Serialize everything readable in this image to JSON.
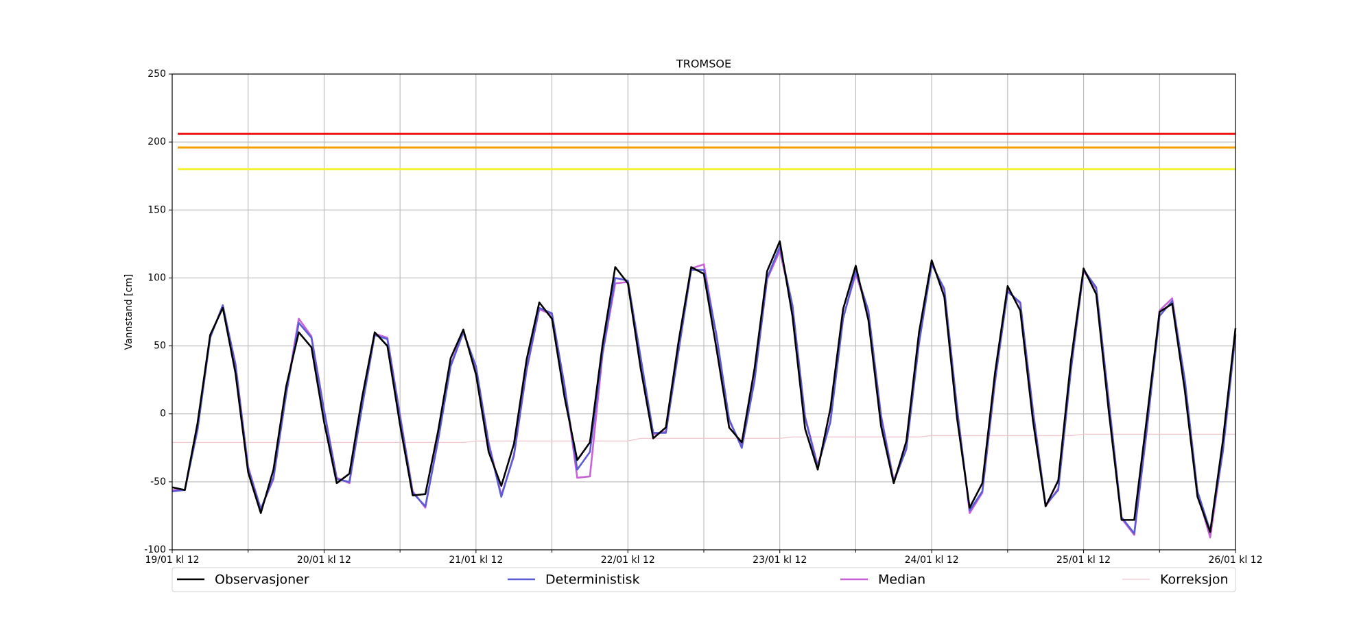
{
  "chart_data": {
    "type": "line",
    "title": "TROMSOE",
    "y_label": "Vannstand [cm]",
    "x": [
      0,
      2,
      4,
      6,
      8,
      10,
      12,
      14,
      16,
      18,
      20,
      22,
      24,
      26,
      28,
      30,
      32,
      34,
      36,
      38,
      40,
      42,
      44,
      46,
      48,
      50,
      52,
      54,
      56,
      58,
      60,
      62,
      64,
      66,
      68,
      70,
      72,
      74,
      76,
      78,
      80,
      82,
      84,
      86,
      88,
      90,
      92,
      94,
      96,
      98,
      100,
      102,
      104,
      106,
      108,
      110,
      112,
      114,
      116,
      118,
      120,
      122,
      124,
      126,
      128,
      130,
      132,
      134,
      136,
      138,
      140,
      142,
      144,
      146,
      148,
      150,
      152,
      154,
      156,
      158,
      160,
      162,
      164,
      166,
      168
    ],
    "xlim": [
      0,
      168
    ],
    "xticks": [
      {
        "value": 0,
        "label": "19/01 kl 12"
      },
      {
        "value": 24,
        "label": "20/01 kl 12"
      },
      {
        "value": 48,
        "label": "21/01 kl 12"
      },
      {
        "value": 72,
        "label": "22/01 kl 12"
      },
      {
        "value": 96,
        "label": "23/01 kl 12"
      },
      {
        "value": 120,
        "label": "24/01 kl 12"
      },
      {
        "value": 144,
        "label": "25/01 kl 12"
      },
      {
        "value": 168,
        "label": "26/01 kl 12"
      }
    ],
    "xminor_ticks": [
      12,
      36,
      60,
      84,
      108,
      132,
      156
    ],
    "ylim": [
      -100,
      250
    ],
    "yticks": [
      -100,
      -50,
      0,
      50,
      100,
      150,
      200,
      250
    ],
    "grid": true,
    "legend": "below",
    "reference_lines": [
      {
        "value": 206,
        "color": "#ee1111"
      },
      {
        "value": 196,
        "color": "#f5a000"
      },
      {
        "value": 180,
        "color": "#f2f230"
      }
    ],
    "series": [
      {
        "name": "Observasjoner",
        "color": "#000000",
        "values": [
          -54,
          -56,
          -7,
          58,
          78,
          30,
          -43,
          -73,
          -41,
          20,
          60,
          49,
          -6,
          -51,
          -44,
          12,
          60,
          50,
          -8,
          -60,
          -59,
          -13,
          41,
          62,
          29,
          -28,
          -53,
          -22,
          40,
          82,
          70,
          12,
          -34,
          -21,
          51,
          108,
          96,
          34,
          -18,
          -10,
          53,
          108,
          103,
          48,
          -10,
          -21,
          33,
          105,
          127,
          72,
          -11,
          -41,
          4,
          77,
          109,
          69,
          -9,
          -51,
          -20,
          60,
          113,
          86,
          -3,
          -69,
          -51,
          30,
          94,
          76,
          -5,
          -68,
          -49,
          39,
          107,
          88,
          1,
          -78,
          -78,
          -3,
          75,
          81,
          17,
          -61,
          -87,
          -20,
          63
        ]
      },
      {
        "name": "Deterministisk",
        "color": "#5c5cd6",
        "values": [
          -57,
          -56,
          -12,
          56,
          80,
          36,
          -40,
          -70,
          -47,
          14,
          67,
          56,
          2,
          -48,
          -50,
          5,
          58,
          55,
          -2,
          -58,
          -68,
          -20,
          35,
          60,
          35,
          -22,
          -61,
          -30,
          33,
          78,
          74,
          20,
          -41,
          -28,
          45,
          100,
          98,
          42,
          -14,
          -14,
          46,
          106,
          106,
          58,
          -4,
          -25,
          24,
          100,
          123,
          80,
          -3,
          -39,
          -6,
          70,
          105,
          76,
          -2,
          -50,
          -26,
          52,
          110,
          92,
          4,
          -71,
          -57,
          24,
          90,
          82,
          2,
          -67,
          -56,
          32,
          106,
          93,
          8,
          -76,
          -88,
          -11,
          72,
          83,
          25,
          -57,
          -86,
          -28,
          58
        ]
      },
      {
        "name": "Median",
        "color": "#c862d6",
        "values": [
          -56,
          -56,
          -11,
          57,
          79,
          37,
          -39,
          -70,
          -48,
          15,
          70,
          57,
          3,
          -47,
          -51,
          6,
          59,
          56,
          -1,
          -57,
          -69,
          -19,
          36,
          61,
          34,
          -21,
          -60,
          -31,
          32,
          77,
          73,
          21,
          -47,
          -46,
          44,
          96,
          97,
          41,
          -15,
          -13,
          47,
          107,
          110,
          57,
          -5,
          -24,
          25,
          99,
          120,
          79,
          -2,
          -38,
          -5,
          71,
          103,
          75,
          -1,
          -49,
          -25,
          53,
          111,
          91,
          5,
          -73,
          -58,
          23,
          91,
          81,
          3,
          -68,
          -55,
          33,
          105,
          92,
          9,
          -77,
          -89,
          -12,
          76,
          85,
          24,
          -58,
          -91,
          -27,
          59
        ]
      },
      {
        "name": "Korreksjon",
        "color": "#f2c6cf",
        "values": [
          -21,
          -21,
          -21,
          -21,
          -21,
          -21,
          -21,
          -21,
          -21,
          -21,
          -21,
          -21,
          -21,
          -21,
          -21,
          -21,
          -21,
          -21,
          -21,
          -21,
          -21,
          -21,
          -21,
          -21,
          -20,
          -20,
          -20,
          -20,
          -20,
          -20,
          -20,
          -20,
          -20,
          -20,
          -20,
          -20,
          -20,
          -18,
          -18,
          -18,
          -18,
          -18,
          -18,
          -18,
          -18,
          -18,
          -18,
          -18,
          -18,
          -17,
          -17,
          -17,
          -17,
          -17,
          -17,
          -17,
          -17,
          -17,
          -17,
          -17,
          -16,
          -16,
          -16,
          -16,
          -16,
          -16,
          -16,
          -16,
          -16,
          -16,
          -16,
          -16,
          -15,
          -15,
          -15,
          -15,
          -15,
          -15,
          -15,
          -15,
          -15,
          -15,
          -15,
          -15,
          -15
        ]
      }
    ]
  }
}
